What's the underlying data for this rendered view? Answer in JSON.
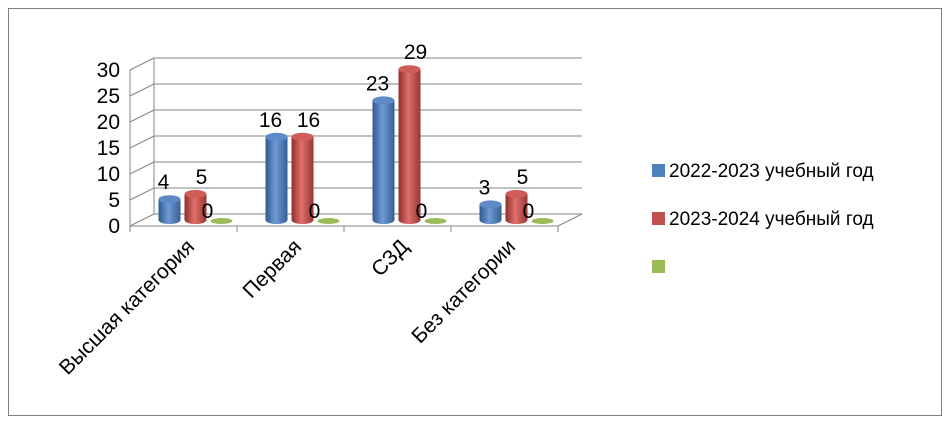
{
  "chart_data": {
    "type": "bar",
    "title": "",
    "xlabel": "",
    "ylabel": "",
    "categories": [
      "Высшая категория",
      "Первая",
      "СЗД",
      "Без категории"
    ],
    "series": [
      {
        "name": "2022-2023 учебный год",
        "values": [
          4,
          16,
          23,
          3
        ],
        "color": "#4f81bd"
      },
      {
        "name": "2023-2024 учебный год",
        "values": [
          5,
          16,
          29,
          5
        ],
        "color": "#c0504d"
      },
      {
        "name": "",
        "values": [
          0,
          0,
          0,
          0
        ],
        "color": "#9bbb59"
      }
    ],
    "ylim": [
      0,
      30
    ],
    "yticks": [
      "0",
      "5",
      "10",
      "15",
      "20",
      "25",
      "30"
    ],
    "grid": true,
    "legend_position": "right",
    "style": "3d-cylinder"
  }
}
